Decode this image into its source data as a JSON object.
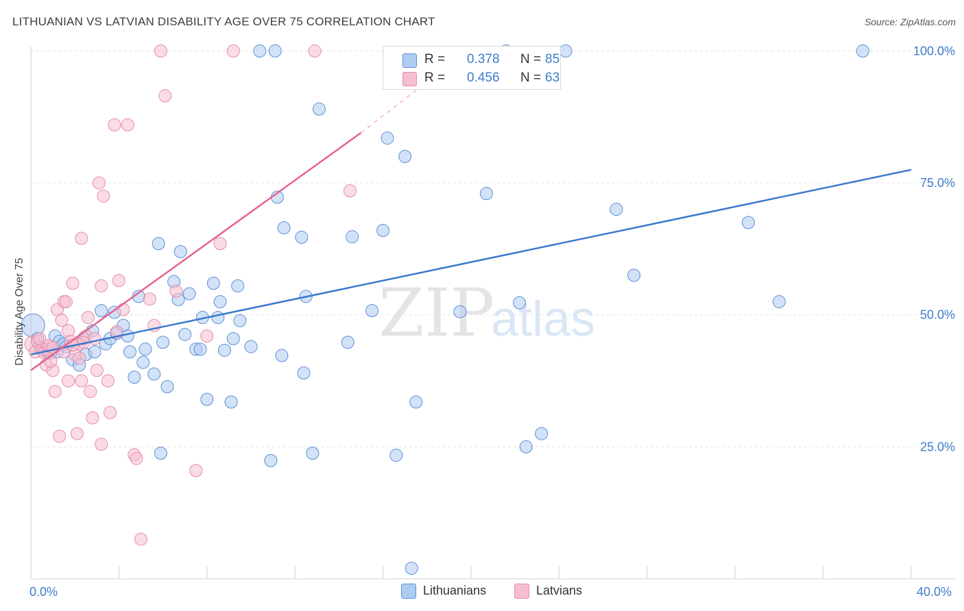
{
  "header": {
    "title": "LITHUANIAN VS LATVIAN DISABILITY AGE OVER 75 CORRELATION CHART",
    "source": "Source: ZipAtlas.com"
  },
  "watermark": {
    "zip": "ZIP",
    "atlas": "atlas"
  },
  "legend": {
    "r_label": "R =",
    "n_label": "N =",
    "rows": [
      {
        "r": "0.378",
        "n": "85"
      },
      {
        "r": "0.456",
        "n": "63"
      }
    ]
  },
  "colors": {
    "lithuanians_fill": "#aecbf0",
    "lithuanians_stroke": "#5b8fd6",
    "lithuanians_line": "#3a78cf",
    "latvians_fill": "#f6bfd0",
    "latvians_stroke": "#e58aa8",
    "latvians_line": "#e3638f",
    "tick_text": "#3d7cc9"
  },
  "chart_data": {
    "type": "scatter",
    "title": "LITHUANIAN VS LATVIAN DISABILITY AGE OVER 75 CORRELATION CHART",
    "xlabel": "",
    "ylabel": "Disability Age Over 75",
    "xlim": [
      0,
      40
    ],
    "ylim": [
      0,
      102
    ],
    "x_tick_labels": [
      "0.0%",
      "40.0%"
    ],
    "y_ticks": [
      25,
      50,
      75,
      100
    ],
    "y_tick_labels": [
      "25.0%",
      "50.0%",
      "75.0%",
      "100.0%"
    ],
    "grid": "horizontal dashed",
    "legend_position": "top-center",
    "series": [
      {
        "name": "Lithuanians",
        "points": [
          [
            0.1,
            48.0
          ],
          [
            0.3,
            45.5
          ],
          [
            0.4,
            44.0
          ],
          [
            0.5,
            43.5
          ],
          [
            0.7,
            43.0
          ],
          [
            0.9,
            42.8
          ],
          [
            1.1,
            46.0
          ],
          [
            1.3,
            45.0
          ],
          [
            1.5,
            44.5
          ],
          [
            1.6,
            44.0
          ],
          [
            1.9,
            41.5
          ],
          [
            2.2,
            40.5
          ],
          [
            2.4,
            45.5
          ],
          [
            2.5,
            42.5
          ],
          [
            2.9,
            43.0
          ],
          [
            3.2,
            50.8
          ],
          [
            3.4,
            44.5
          ],
          [
            3.6,
            45.5
          ],
          [
            3.8,
            50.5
          ],
          [
            3.9,
            46.5
          ],
          [
            4.2,
            48.0
          ],
          [
            4.4,
            46.0
          ],
          [
            4.5,
            43.0
          ],
          [
            4.7,
            38.2
          ],
          [
            4.9,
            53.5
          ],
          [
            5.1,
            41.0
          ],
          [
            5.2,
            43.5
          ],
          [
            5.6,
            38.8
          ],
          [
            5.8,
            63.5
          ],
          [
            5.9,
            23.8
          ],
          [
            6.0,
            44.8
          ],
          [
            6.2,
            36.4
          ],
          [
            6.5,
            56.3
          ],
          [
            6.7,
            52.9
          ],
          [
            6.8,
            62.0
          ],
          [
            7.0,
            46.3
          ],
          [
            7.2,
            54.0
          ],
          [
            7.5,
            43.5
          ],
          [
            7.7,
            43.5
          ],
          [
            7.8,
            49.5
          ],
          [
            8.0,
            34.0
          ],
          [
            8.3,
            56.0
          ],
          [
            8.5,
            49.5
          ],
          [
            8.6,
            52.5
          ],
          [
            8.8,
            43.3
          ],
          [
            9.1,
            33.5
          ],
          [
            9.2,
            45.5
          ],
          [
            9.4,
            55.5
          ],
          [
            9.5,
            48.9
          ],
          [
            10.0,
            44.0
          ],
          [
            10.4,
            100.0
          ],
          [
            11.1,
            100.0
          ],
          [
            10.9,
            22.4
          ],
          [
            11.2,
            72.3
          ],
          [
            11.4,
            42.3
          ],
          [
            11.5,
            66.5
          ],
          [
            12.3,
            64.7
          ],
          [
            12.4,
            39.0
          ],
          [
            12.5,
            53.5
          ],
          [
            12.8,
            23.8
          ],
          [
            13.1,
            89.0
          ],
          [
            14.4,
            44.8
          ],
          [
            14.6,
            64.8
          ],
          [
            15.5,
            50.8
          ],
          [
            16.0,
            66.0
          ],
          [
            16.2,
            83.5
          ],
          [
            16.6,
            23.4
          ],
          [
            17.0,
            80.0
          ],
          [
            17.5,
            33.5
          ],
          [
            17.3,
            2.0
          ],
          [
            19.5,
            50.6
          ],
          [
            20.7,
            73.0
          ],
          [
            21.6,
            100.0
          ],
          [
            22.2,
            52.3
          ],
          [
            22.5,
            25.0
          ],
          [
            23.2,
            27.5
          ],
          [
            24.3,
            100.0
          ],
          [
            26.6,
            70.0
          ],
          [
            27.4,
            57.5
          ],
          [
            32.6,
            67.5
          ],
          [
            34.0,
            52.5
          ],
          [
            37.8,
            100.0
          ],
          [
            2.8,
            47.0
          ],
          [
            1.2,
            43.0
          ],
          [
            0.6,
            43.5
          ]
        ],
        "trend": {
          "x": [
            0,
            40
          ],
          "y": [
            42.5,
            77.5
          ]
        }
      },
      {
        "name": "Latvians",
        "points": [
          [
            0.1,
            44.5
          ],
          [
            0.2,
            43.0
          ],
          [
            0.3,
            45.0
          ],
          [
            0.5,
            43.5
          ],
          [
            0.6,
            42.8
          ],
          [
            0.7,
            40.5
          ],
          [
            0.8,
            43.0
          ],
          [
            0.9,
            44.0
          ],
          [
            1.0,
            39.5
          ],
          [
            1.1,
            35.5
          ],
          [
            1.2,
            51.0
          ],
          [
            1.3,
            27.0
          ],
          [
            1.4,
            49.0
          ],
          [
            1.5,
            52.5
          ],
          [
            1.6,
            52.5
          ],
          [
            1.7,
            47.0
          ],
          [
            1.7,
            37.5
          ],
          [
            1.8,
            45.0
          ],
          [
            1.9,
            56.0
          ],
          [
            2.0,
            42.5
          ],
          [
            2.1,
            27.5
          ],
          [
            2.2,
            44.5
          ],
          [
            2.3,
            37.5
          ],
          [
            2.3,
            64.5
          ],
          [
            2.5,
            46.0
          ],
          [
            2.6,
            49.5
          ],
          [
            2.7,
            35.5
          ],
          [
            2.8,
            30.5
          ],
          [
            2.9,
            45.5
          ],
          [
            3.0,
            39.5
          ],
          [
            3.1,
            75.0
          ],
          [
            3.2,
            25.5
          ],
          [
            3.2,
            55.5
          ],
          [
            3.3,
            72.5
          ],
          [
            3.5,
            37.5
          ],
          [
            3.6,
            31.5
          ],
          [
            3.8,
            86.0
          ],
          [
            4.0,
            56.5
          ],
          [
            4.2,
            51.0
          ],
          [
            4.4,
            86.0
          ],
          [
            4.7,
            23.5
          ],
          [
            4.8,
            22.8
          ],
          [
            5.0,
            7.5
          ],
          [
            5.4,
            53.0
          ],
          [
            5.6,
            48.0
          ],
          [
            5.9,
            100.0
          ],
          [
            6.1,
            91.5
          ],
          [
            6.6,
            54.5
          ],
          [
            7.5,
            20.5
          ],
          [
            8.0,
            46.0
          ],
          [
            8.6,
            63.5
          ],
          [
            9.2,
            100.0
          ],
          [
            12.9,
            100.0
          ],
          [
            14.5,
            73.5
          ],
          [
            1.5,
            43.0
          ],
          [
            0.4,
            45.5
          ],
          [
            0.8,
            44.2
          ],
          [
            1.9,
            44.3
          ],
          [
            2.4,
            44.8
          ],
          [
            1.0,
            43.8
          ],
          [
            3.9,
            46.8
          ],
          [
            2.2,
            41.8
          ],
          [
            0.9,
            41.2
          ]
        ],
        "trend": {
          "x": [
            0,
            15
          ],
          "y": [
            39.5,
            84.5
          ]
        },
        "trend_extension": {
          "x": [
            15,
            17.8
          ],
          "y": [
            84.5,
            93.5
          ]
        }
      }
    ]
  },
  "bottom_legend": [
    "Lithuanians",
    "Latvians"
  ]
}
